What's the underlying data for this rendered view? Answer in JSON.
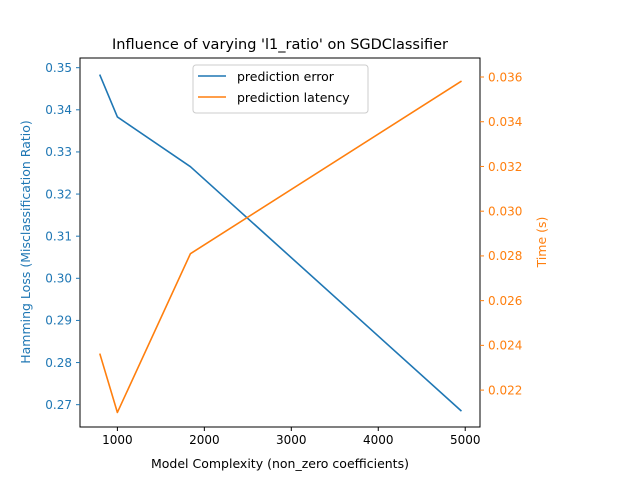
{
  "chart_data": {
    "type": "line",
    "title": "Influence of varying 'l1_ratio' on SGDClassifier",
    "xlabel": "Model Complexity (non_zero coefficients)",
    "ylabel_left": "Hamming Loss (Misclassification Ratio)",
    "ylabel_right": "Time (s)",
    "xlim": [
      570,
      5170
    ],
    "ylim_left": [
      0.2647,
      0.3523
    ],
    "ylim_right": [
      0.02035,
      0.03685
    ],
    "x_ticks": [
      1000,
      2000,
      3000,
      4000,
      5000
    ],
    "y_ticks_left": [
      0.27,
      0.28,
      0.29,
      0.3,
      0.31,
      0.32,
      0.33,
      0.34,
      0.35
    ],
    "y_ticks_right": [
      0.022,
      0.024,
      0.026,
      0.028,
      0.03,
      0.032,
      0.034,
      0.036
    ],
    "x_tick_labels": [
      "1000",
      "2000",
      "3000",
      "4000",
      "5000"
    ],
    "y_tick_labels_left": [
      "0.27",
      "0.28",
      "0.29",
      "0.30",
      "0.31",
      "0.32",
      "0.33",
      "0.34",
      "0.35"
    ],
    "y_tick_labels_right": [
      "0.022",
      "0.024",
      "0.026",
      "0.028",
      "0.030",
      "0.032",
      "0.034",
      "0.036"
    ],
    "legend_position": "top-center",
    "grid": false,
    "series": [
      {
        "name": "prediction error",
        "axis": "left",
        "color": "#1f77b4",
        "x": [
          800,
          1000,
          1840,
          4950
        ],
        "y": [
          0.3482,
          0.3383,
          0.3265,
          0.2686
        ]
      },
      {
        "name": "prediction latency",
        "axis": "right",
        "color": "#ff7f0e",
        "x": [
          800,
          1000,
          1840,
          4950
        ],
        "y": [
          0.0236,
          0.021,
          0.0281,
          0.0358
        ]
      }
    ]
  }
}
